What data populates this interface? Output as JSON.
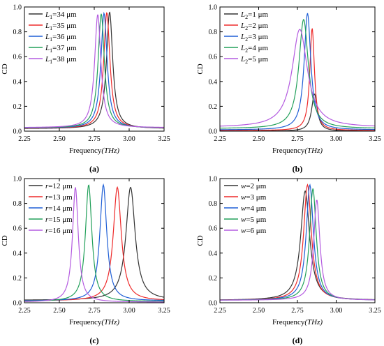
{
  "chart_data": [
    {
      "type": "line",
      "panel_label": "(a)",
      "xlabel": "Frequency",
      "xlabel_unit": "(THz)",
      "ylabel": "CD",
      "xlim": [
        2.25,
        3.25
      ],
      "ylim": [
        0,
        1.0
      ],
      "xticks": [
        "2.25",
        "2.50",
        "2.75",
        "3.00",
        "3.25"
      ],
      "yticks": [
        "0.0",
        "0.2",
        "0.4",
        "0.6",
        "0.8",
        "1.0"
      ],
      "legend_position": "top-left",
      "series": [
        {
          "name": "L1=34 μm",
          "legend_sym": "L",
          "legend_sub": "1",
          "legend_rest": "=34 μm",
          "color": "#333333",
          "peak_x": 2.86,
          "peak_y": 0.96,
          "width": 0.027,
          "baseline": 0.02
        },
        {
          "name": "L1=35 μm",
          "legend_sym": "L",
          "legend_sub": "1",
          "legend_rest": "=35 μm",
          "color": "#ee2a2a",
          "peak_x": 2.84,
          "peak_y": 0.955,
          "width": 0.027,
          "baseline": 0.022
        },
        {
          "name": "L1=36 μm",
          "legend_sym": "L",
          "legend_sub": "1",
          "legend_rest": "=36 μm",
          "color": "#1f5fd6",
          "peak_x": 2.82,
          "peak_y": 0.95,
          "width": 0.027,
          "baseline": 0.024
        },
        {
          "name": "L1=37 μm",
          "legend_sym": "L",
          "legend_sub": "1",
          "legend_rest": "=37 μm",
          "color": "#22a05a",
          "peak_x": 2.8,
          "peak_y": 0.945,
          "width": 0.027,
          "baseline": 0.026
        },
        {
          "name": "L1=38 μm",
          "legend_sym": "L",
          "legend_sub": "1",
          "legend_rest": "=38 μm",
          "color": "#b45be0",
          "peak_x": 2.775,
          "peak_y": 0.94,
          "width": 0.027,
          "baseline": 0.028
        }
      ]
    },
    {
      "type": "line",
      "panel_label": "(b)",
      "xlabel": "Frequency",
      "xlabel_unit": "(THz)",
      "ylabel": "CD",
      "xlim": [
        2.25,
        3.25
      ],
      "ylim": [
        0,
        1.0
      ],
      "xticks": [
        "2.25",
        "2.50",
        "2.75",
        "3.00",
        "3.25"
      ],
      "yticks": [
        "0.0",
        "0.2",
        "0.4",
        "0.6",
        "0.8",
        "1.0"
      ],
      "legend_position": "top-left",
      "series": [
        {
          "name": "L2=1 μm",
          "legend_sym": "L",
          "legend_sub": "2",
          "legend_rest": "=1 μm",
          "color": "#333333",
          "peak_x": 2.86,
          "peak_y": 0.3,
          "width": 0.022,
          "baseline": 0.0
        },
        {
          "name": "L2=2 μm",
          "legend_sym": "L",
          "legend_sub": "2",
          "legend_rest": "=2 μm",
          "color": "#ee2a2a",
          "peak_x": 2.845,
          "peak_y": 0.83,
          "width": 0.018,
          "baseline": 0.005
        },
        {
          "name": "L2=3 μm",
          "legend_sym": "L",
          "legend_sub": "2",
          "legend_rest": "=3 μm",
          "color": "#1f5fd6",
          "peak_x": 2.815,
          "peak_y": 0.95,
          "width": 0.026,
          "baseline": 0.01
        },
        {
          "name": "L2=4 μm",
          "legend_sym": "L",
          "legend_sub": "2",
          "legend_rest": "=4 μm",
          "color": "#22a05a",
          "peak_x": 2.79,
          "peak_y": 0.9,
          "width": 0.037,
          "baseline": 0.02
        },
        {
          "name": "L2=5 μm",
          "legend_sym": "L",
          "legend_sub": "2",
          "legend_rest": "=5 μm",
          "color": "#b45be0",
          "peak_x": 2.765,
          "peak_y": 0.82,
          "width": 0.06,
          "baseline": 0.03
        }
      ]
    },
    {
      "type": "line",
      "panel_label": "(c)",
      "xlabel": "Frequency",
      "xlabel_unit": "(THz)",
      "ylabel": "CD",
      "xlim": [
        2.25,
        3.25
      ],
      "ylim": [
        0,
        1.0
      ],
      "xticks": [
        "2.25",
        "2.50",
        "2.75",
        "3.00",
        "3.25"
      ],
      "yticks": [
        "0.0",
        "0.2",
        "0.4",
        "0.6",
        "0.8",
        "1.0"
      ],
      "legend_position": "top-left",
      "series": [
        {
          "name": "r=12 μm",
          "legend_sym": "r",
          "legend_sub": "",
          "legend_rest": "=12 μm",
          "color": "#333333",
          "peak_x": 3.01,
          "peak_y": 0.93,
          "width": 0.04,
          "baseline": 0.02
        },
        {
          "name": "r=13 μm",
          "legend_sym": "r",
          "legend_sub": "",
          "legend_rest": "=13 μm",
          "color": "#ee2a2a",
          "peak_x": 2.915,
          "peak_y": 0.93,
          "width": 0.035,
          "baseline": 0.015
        },
        {
          "name": "r=14 μm",
          "legend_sym": "r",
          "legend_sub": "",
          "legend_rest": "=14 μm",
          "color": "#1f5fd6",
          "peak_x": 2.815,
          "peak_y": 0.95,
          "width": 0.03,
          "baseline": 0.015
        },
        {
          "name": "r=15 μm",
          "legend_sym": "r",
          "legend_sub": "",
          "legend_rest": "=15 μm",
          "color": "#22a05a",
          "peak_x": 2.71,
          "peak_y": 0.95,
          "width": 0.028,
          "baseline": 0.01
        },
        {
          "name": "r=16 μm",
          "legend_sym": "r",
          "legend_sub": "",
          "legend_rest": "=16 μm",
          "color": "#b45be0",
          "peak_x": 2.615,
          "peak_y": 0.93,
          "width": 0.025,
          "baseline": 0.005
        }
      ]
    },
    {
      "type": "line",
      "panel_label": "(d)",
      "xlabel": "Frequency",
      "xlabel_unit": "(THz)",
      "ylabel": "CD",
      "xlim": [
        2.25,
        3.25
      ],
      "ylim": [
        0,
        1.0
      ],
      "xticks": [
        "2.25",
        "2.50",
        "2.75",
        "3.00",
        "3.25"
      ],
      "yticks": [
        "0.0",
        "0.2",
        "0.4",
        "0.6",
        "0.8",
        "1.0"
      ],
      "legend_position": "top-left",
      "series": [
        {
          "name": "w=2 μm",
          "legend_sym": "w",
          "legend_sub": "",
          "legend_rest": "=2 μm",
          "color": "#333333",
          "peak_x": 2.8,
          "peak_y": 0.9,
          "width": 0.035,
          "baseline": 0.02
        },
        {
          "name": "w=3 μm",
          "legend_sym": "w",
          "legend_sub": "",
          "legend_rest": "=3 μm",
          "color": "#ee2a2a",
          "peak_x": 2.815,
          "peak_y": 0.95,
          "width": 0.03,
          "baseline": 0.02
        },
        {
          "name": "w=4 μm",
          "legend_sym": "w",
          "legend_sub": "",
          "legend_rest": "=4 μm",
          "color": "#1f5fd6",
          "peak_x": 2.83,
          "peak_y": 0.95,
          "width": 0.028,
          "baseline": 0.02
        },
        {
          "name": "w=5 μm",
          "legend_sym": "w",
          "legend_sub": "",
          "legend_rest": "=5 μm",
          "color": "#22a05a",
          "peak_x": 2.85,
          "peak_y": 0.92,
          "width": 0.026,
          "baseline": 0.02
        },
        {
          "name": "w=6 μm",
          "legend_sym": "w",
          "legend_sub": "",
          "legend_rest": "=6 μm",
          "color": "#b45be0",
          "peak_x": 2.875,
          "peak_y": 0.83,
          "width": 0.024,
          "baseline": 0.02
        }
      ]
    }
  ]
}
